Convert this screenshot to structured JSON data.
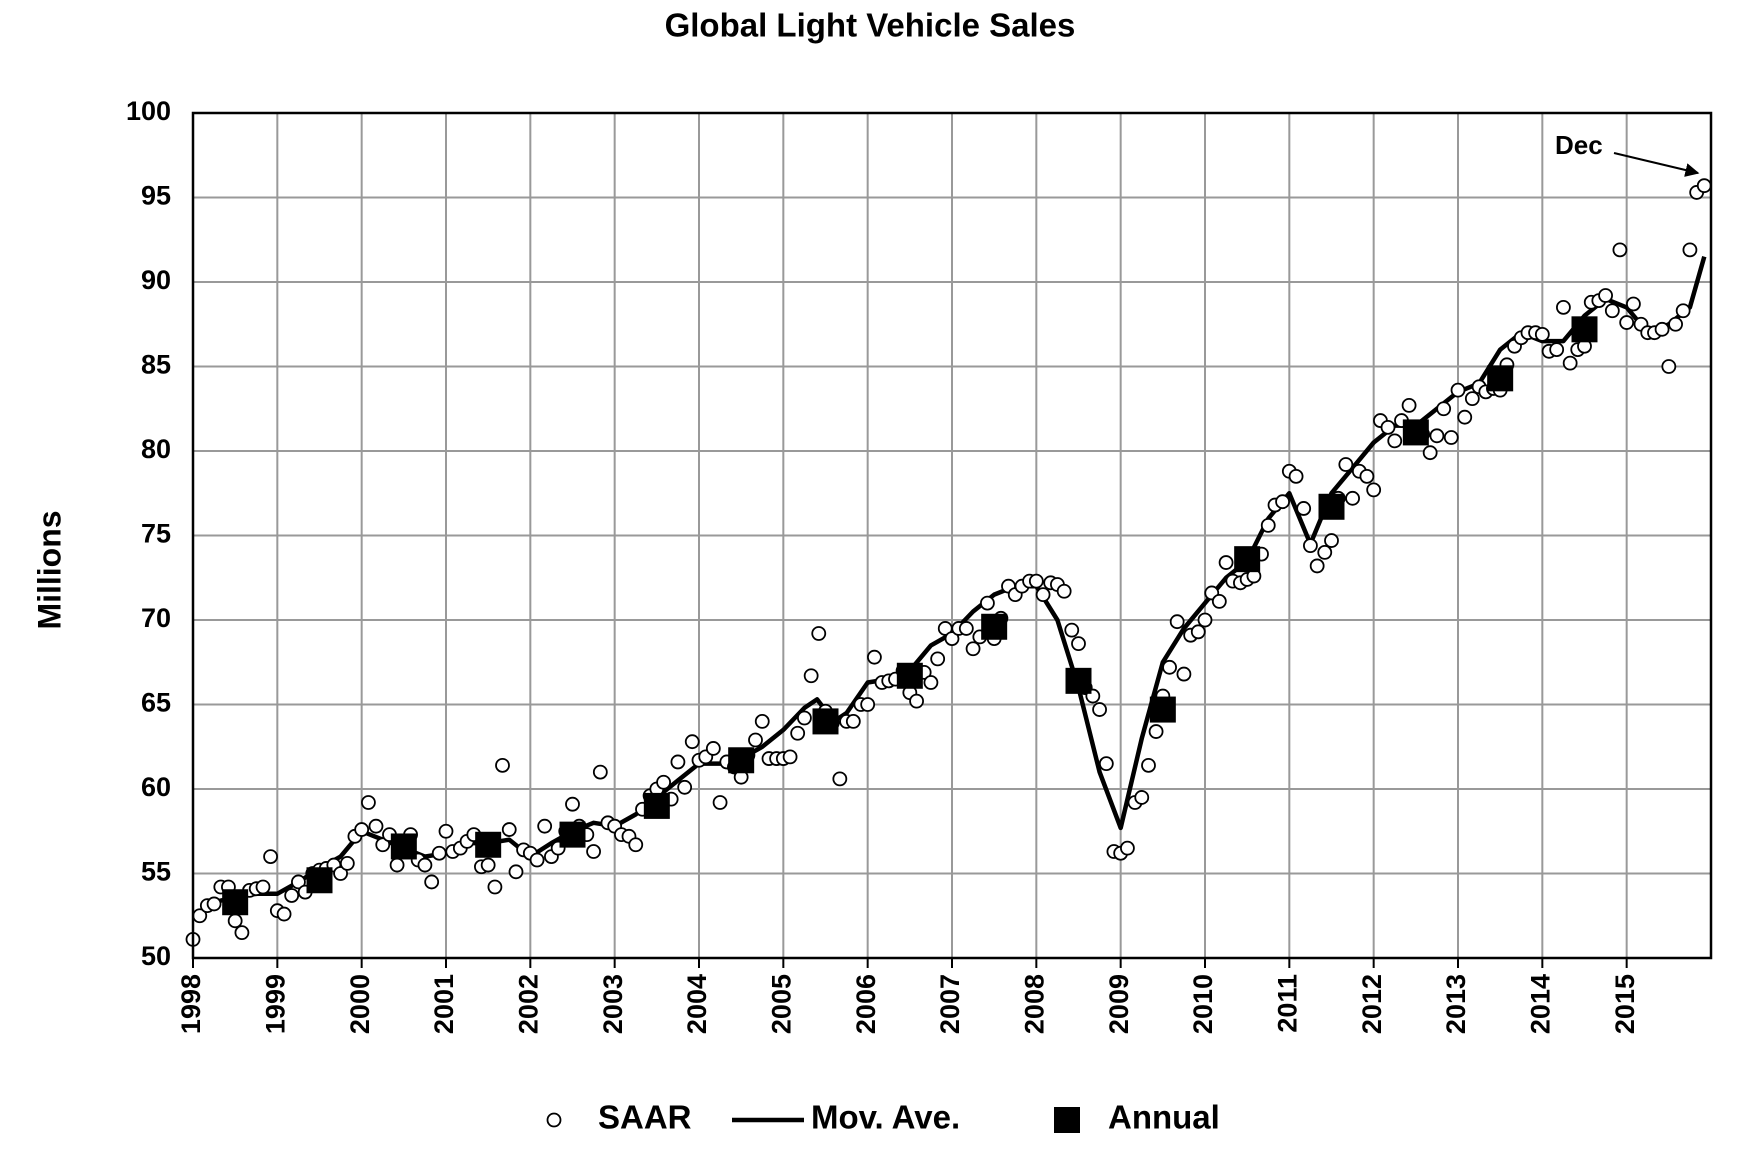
{
  "chart_data": {
    "type": "scatter",
    "title": "Global Light Vehicle Sales",
    "y_label": "Millions",
    "xlim": [
      1998,
      2016
    ],
    "xticks": [
      1998,
      1999,
      2000,
      2001,
      2002,
      2003,
      2004,
      2005,
      2006,
      2007,
      2008,
      2009,
      2010,
      2011,
      2012,
      2013,
      2014,
      2015
    ],
    "ylim": [
      50,
      100
    ],
    "yticks": [
      50,
      55,
      60,
      65,
      70,
      75,
      80,
      85,
      90,
      95,
      100
    ],
    "grid": true,
    "legend": "bottom",
    "annotation": "Dec",
    "series": [
      {
        "name": "SAAR",
        "mark": "circle",
        "color": "#000000",
        "x": [
          1998,
          1998.08,
          1998.17,
          1998.25,
          1998.33,
          1998.42,
          1998.5,
          1998.58,
          1998.67,
          1998.75,
          1998.83,
          1998.92,
          1999,
          1999.08,
          1999.17,
          1999.25,
          1999.33,
          1999.42,
          1999.5,
          1999.58,
          1999.67,
          1999.75,
          1999.83,
          1999.92,
          2000,
          2000.08,
          2000.17,
          2000.25,
          2000.33,
          2000.42,
          2000.5,
          2000.58,
          2000.67,
          2000.75,
          2000.83,
          2000.92,
          2001,
          2001.08,
          2001.17,
          2001.25,
          2001.33,
          2001.42,
          2001.5,
          2001.58,
          2001.67,
          2001.75,
          2001.83,
          2001.92,
          2002,
          2002.08,
          2002.17,
          2002.25,
          2002.33,
          2002.42,
          2002.5,
          2002.58,
          2002.67,
          2002.75,
          2002.83,
          2002.92,
          2003,
          2003.08,
          2003.17,
          2003.25,
          2003.33,
          2003.42,
          2003.5,
          2003.58,
          2003.67,
          2003.75,
          2003.83,
          2003.92,
          2004,
          2004.08,
          2004.17,
          2004.25,
          2004.33,
          2004.42,
          2004.5,
          2004.58,
          2004.67,
          2004.75,
          2004.83,
          2004.92,
          2005,
          2005.08,
          2005.17,
          2005.25,
          2005.33,
          2005.42,
          2005.5,
          2005.58,
          2005.67,
          2005.75,
          2005.83,
          2005.92,
          2006,
          2006.08,
          2006.17,
          2006.25,
          2006.33,
          2006.42,
          2006.5,
          2006.58,
          2006.67,
          2006.75,
          2006.83,
          2006.92,
          2007,
          2007.08,
          2007.17,
          2007.25,
          2007.33,
          2007.42,
          2007.5,
          2007.58,
          2007.67,
          2007.75,
          2007.83,
          2007.92,
          2008,
          2008.08,
          2008.17,
          2008.25,
          2008.33,
          2008.42,
          2008.5,
          2008.58,
          2008.67,
          2008.75,
          2008.83,
          2008.92,
          2009,
          2009.08,
          2009.17,
          2009.25,
          2009.33,
          2009.42,
          2009.5,
          2009.58,
          2009.67,
          2009.75,
          2009.83,
          2009.92,
          2010,
          2010.08,
          2010.17,
          2010.25,
          2010.33,
          2010.42,
          2010.5,
          2010.58,
          2010.67,
          2010.75,
          2010.83,
          2010.92,
          2011,
          2011.08,
          2011.17,
          2011.25,
          2011.33,
          2011.42,
          2011.5,
          2011.58,
          2011.67,
          2011.75,
          2011.83,
          2011.92,
          2012,
          2012.08,
          2012.17,
          2012.25,
          2012.33,
          2012.42,
          2012.5,
          2012.58,
          2012.67,
          2012.75,
          2012.83,
          2012.92,
          2013,
          2013.08,
          2013.17,
          2013.25,
          2013.33,
          2013.42,
          2013.5,
          2013.58,
          2013.67,
          2013.75,
          2013.83,
          2013.92,
          2014,
          2014.08,
          2014.17,
          2014.25,
          2014.33,
          2014.42,
          2014.5,
          2014.58,
          2014.67,
          2014.75,
          2014.83,
          2014.92,
          2015,
          2015.08,
          2015.17,
          2015.25,
          2015.33,
          2015.42,
          2015.5,
          2015.58,
          2015.67,
          2015.75,
          2015.83,
          2015.92
        ],
        "values": [
          51.1,
          52.5,
          53.1,
          53.2,
          54.2,
          54.2,
          52.2,
          51.5,
          54.0,
          54.1,
          54.2,
          56.0,
          52.8,
          52.6,
          53.7,
          54.5,
          53.9,
          55.0,
          55.2,
          55.3,
          55.5,
          55.0,
          55.6,
          57.2,
          57.6,
          59.2,
          57.8,
          56.7,
          57.3,
          55.5,
          56.7,
          57.3,
          55.8,
          55.5,
          54.5,
          56.2,
          57.5,
          56.3,
          56.5,
          56.9,
          57.3,
          55.4,
          55.5,
          54.2,
          61.4,
          57.6,
          55.1,
          56.4,
          56.2,
          55.8,
          57.8,
          56.0,
          56.5,
          57.5,
          59.1,
          57.8,
          57.3,
          56.3,
          61.0,
          58.0,
          57.8,
          57.3,
          57.2,
          56.7,
          58.8,
          59.6,
          60.0,
          60.4,
          59.4,
          61.6,
          60.1,
          62.8,
          61.7,
          61.9,
          62.4,
          59.2,
          61.6,
          61.3,
          60.7,
          62.0,
          62.9,
          64.0,
          61.8,
          61.8,
          61.8,
          61.9,
          63.3,
          64.2,
          66.7,
          69.2,
          64.6,
          63.9,
          60.6,
          64.0,
          64.0,
          65.0,
          65.0,
          67.8,
          66.3,
          66.4,
          66.5,
          67.0,
          65.7,
          65.2,
          66.9,
          66.3,
          67.7,
          69.5,
          68.9,
          69.5,
          69.5,
          68.3,
          69.0,
          71.0,
          68.9,
          70.1,
          72.0,
          71.5,
          72.0,
          72.3,
          72.3,
          71.5,
          72.2,
          72.1,
          71.7,
          69.4,
          68.6,
          66.0,
          65.5,
          64.7,
          61.5,
          56.3,
          56.2,
          56.5,
          59.2,
          59.5,
          61.4,
          63.4,
          65.5,
          67.2,
          69.9,
          66.8,
          69.1,
          69.3,
          70.0,
          71.6,
          71.1,
          73.4,
          72.3,
          72.2,
          72.4,
          72.6,
          73.9,
          75.6,
          76.8,
          77.0,
          78.8,
          78.5,
          76.6,
          74.4,
          73.2,
          74.0,
          74.7,
          77.2,
          79.2,
          77.2,
          78.8,
          78.5,
          77.7,
          81.8,
          81.4,
          80.6,
          81.8,
          82.7,
          81.2,
          81.0,
          79.9,
          80.9,
          82.5,
          80.8,
          83.6,
          82.0,
          83.1,
          83.8,
          83.5,
          83.7,
          83.6,
          85.1,
          86.2,
          86.7,
          87.0,
          87.0,
          86.9,
          85.9,
          86.0,
          88.5,
          85.2,
          86.0,
          86.2,
          88.8,
          88.9,
          89.2,
          88.3,
          91.9,
          87.6,
          88.7,
          87.5,
          87.0,
          87.0,
          87.2,
          85.0,
          87.5,
          88.3,
          91.9,
          95.3,
          95.7
        ]
      },
      {
        "name": "Mov. Ave.",
        "mark": "line",
        "color": "#000000",
        "x": [
          1998.25,
          1998.5,
          1998.75,
          1999,
          1999.25,
          1999.5,
          1999.75,
          2000,
          2000.25,
          2000.5,
          2000.75,
          2001,
          2001.25,
          2001.5,
          2001.75,
          2002,
          2002.25,
          2002.5,
          2002.75,
          2003,
          2003.25,
          2003.5,
          2003.75,
          2004,
          2004.25,
          2004.5,
          2004.75,
          2005,
          2005.25,
          2005.4,
          2005.6,
          2005.75,
          2006,
          2006.25,
          2006.5,
          2006.75,
          2007,
          2007.25,
          2007.5,
          2007.75,
          2008,
          2008.25,
          2008.5,
          2008.75,
          2009,
          2009.25,
          2009.5,
          2009.75,
          2010,
          2010.25,
          2010.5,
          2010.75,
          2011,
          2011.25,
          2011.5,
          2011.75,
          2012,
          2012.25,
          2012.5,
          2012.75,
          2013,
          2013.25,
          2013.5,
          2013.75,
          2014,
          2014.25,
          2014.5,
          2014.75,
          2015,
          2015.25,
          2015.5,
          2015.75,
          2015.92
        ],
        "values": [
          53.3,
          53.6,
          53.8,
          53.8,
          54.5,
          55.3,
          56.0,
          57.5,
          57.0,
          56.5,
          56.0,
          56.2,
          56.8,
          56.8,
          57.0,
          56.0,
          56.8,
          57.5,
          58.0,
          57.8,
          58.5,
          59.5,
          60.5,
          61.5,
          61.5,
          61.8,
          62.5,
          63.5,
          64.8,
          65.3,
          64.0,
          64.5,
          66.3,
          66.5,
          67.0,
          68.5,
          69.2,
          70.5,
          71.5,
          72.0,
          72.0,
          70.0,
          66.0,
          61.0,
          57.7,
          63.0,
          67.5,
          69.5,
          71.0,
          72.5,
          73.5,
          76.0,
          77.5,
          74.5,
          77.5,
          79.0,
          80.5,
          81.5,
          81.5,
          82.5,
          83.5,
          84.0,
          86.0,
          87.0,
          86.5,
          86.5,
          88.0,
          89.0,
          88.5,
          87.0,
          87.5,
          88.5,
          91.5
        ]
      },
      {
        "name": "Annual",
        "mark": "square",
        "color": "#000000",
        "x": [
          1998.5,
          1999.5,
          2000.5,
          2001.5,
          2002.5,
          2003.5,
          2004.5,
          2005.5,
          2006.5,
          2007.5,
          2008.5,
          2009.5,
          2010.5,
          2011.5,
          2012.5,
          2013.5,
          2014.5
        ],
        "values": [
          53.3,
          54.6,
          56.6,
          56.7,
          57.3,
          59.0,
          61.7,
          64.0,
          66.7,
          69.6,
          66.4,
          64.7,
          73.6,
          76.7,
          81.1,
          84.3,
          87.2
        ]
      }
    ]
  }
}
